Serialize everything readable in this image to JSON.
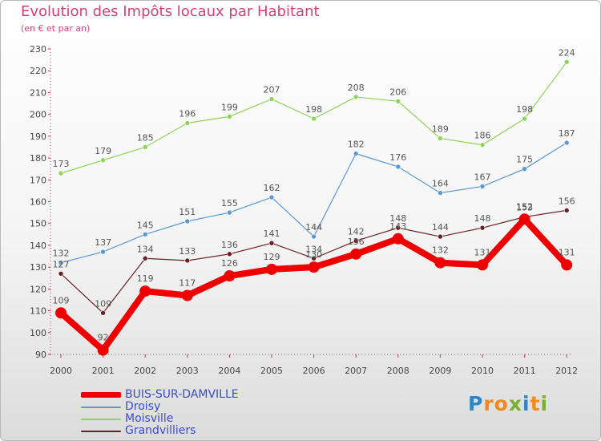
{
  "title": "Evolution des Impôts locaux par Habitant",
  "subtitle": "(en € et par an)",
  "brand": {
    "letters": [
      {
        "ch": "P",
        "color": "#2e86c8"
      },
      {
        "ch": "r",
        "color": "#f08a1c"
      },
      {
        "ch": "o",
        "color": "#f08a1c"
      },
      {
        "ch": "x",
        "color": "#7ab02a"
      },
      {
        "ch": "i",
        "color": "#2e86c8"
      },
      {
        "ch": "t",
        "color": "#f08a1c"
      },
      {
        "ch": "i",
        "color": "#7ab02a"
      }
    ]
  },
  "chart_data": {
    "type": "line",
    "x": [
      "2000",
      "2001",
      "2002",
      "2003",
      "2004",
      "2005",
      "2006",
      "2007",
      "2008",
      "2009",
      "2010",
      "2011",
      "2012"
    ],
    "ylim": [
      90,
      230
    ],
    "yticks": [
      90,
      100,
      110,
      120,
      130,
      140,
      150,
      160,
      170,
      180,
      190,
      200,
      210,
      220,
      230
    ],
    "grid": false,
    "legend_position": "bottom-left",
    "series": [
      {
        "name": "BUIS-SUR-DAMVILLE",
        "color": "#ee0000",
        "width": 8,
        "marker": 7,
        "values": [
          109,
          92,
          119,
          117,
          126,
          129,
          130,
          136,
          143,
          132,
          131,
          152,
          131
        ]
      },
      {
        "name": "Droisy",
        "color": "#5a98d2",
        "width": 1.2,
        "marker": 3,
        "values": [
          132,
          137,
          145,
          151,
          155,
          162,
          144,
          182,
          176,
          164,
          167,
          175,
          187
        ]
      },
      {
        "name": "Moisville",
        "color": "#8fd45a",
        "width": 1.2,
        "marker": 3,
        "values": [
          173,
          179,
          185,
          196,
          199,
          207,
          198,
          208,
          206,
          189,
          186,
          198,
          224
        ]
      },
      {
        "name": "Grandvilliers",
        "color": "#6b1f24",
        "width": 1.2,
        "marker": 3,
        "values": [
          127,
          109,
          134,
          133,
          136,
          141,
          134,
          142,
          148,
          144,
          148,
          153,
          156
        ]
      }
    ]
  }
}
